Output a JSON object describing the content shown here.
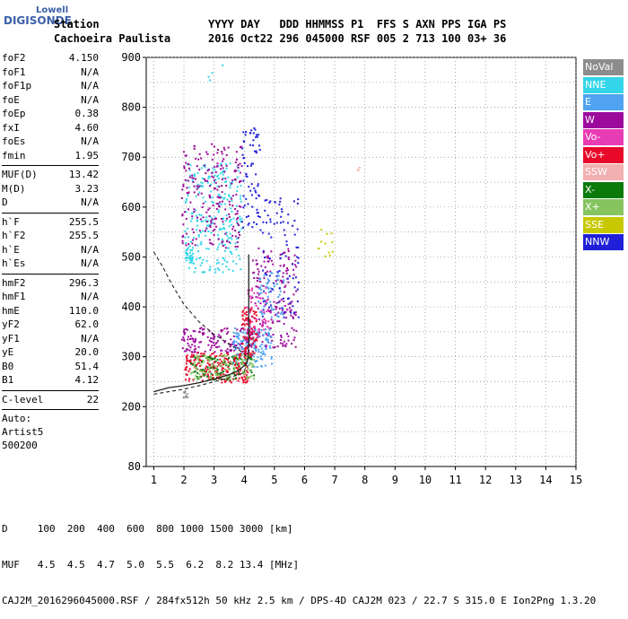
{
  "logo": {
    "line1": "Lowell",
    "line2": "DIGISONDE"
  },
  "header": {
    "station_label": "Station",
    "station_name": "Cachoeira Paulista",
    "columns": "YYYY DAY   DDD HHMMSS P1  FFS S AXN PPS IGA PS",
    "values": "2016 Oct22 296 045000 RSF 005 2 713 100 03+ 36"
  },
  "params": {
    "group1": [
      {
        "k": "foF2",
        "v": "4.150"
      },
      {
        "k": "foF1",
        "v": "N/A"
      },
      {
        "k": "foF1p",
        "v": "N/A"
      },
      {
        "k": "foE",
        "v": "N/A"
      },
      {
        "k": "foEp",
        "v": "0.38"
      },
      {
        "k": "fxI",
        "v": "4.60"
      },
      {
        "k": "foEs",
        "v": "N/A"
      },
      {
        "k": "fmin",
        "v": "1.95"
      }
    ],
    "group2": [
      {
        "k": "MUF(D)",
        "v": "13.42"
      },
      {
        "k": "M(D)",
        "v": "3.23"
      },
      {
        "k": "D",
        "v": "N/A"
      }
    ],
    "group3": [
      {
        "k": "h`F",
        "v": "255.5"
      },
      {
        "k": "h`F2",
        "v": "255.5"
      },
      {
        "k": "h`E",
        "v": "N/A"
      },
      {
        "k": "h`Es",
        "v": "N/A"
      }
    ],
    "group4": [
      {
        "k": "hmF2",
        "v": "296.3"
      },
      {
        "k": "hmF1",
        "v": "N/A"
      },
      {
        "k": "hmE",
        "v": "110.0"
      },
      {
        "k": "yF2",
        "v": "62.0"
      },
      {
        "k": "yF1",
        "v": "N/A"
      },
      {
        "k": "yE",
        "v": "20.0"
      },
      {
        "k": "B0",
        "v": "51.4"
      },
      {
        "k": "B1",
        "v": "4.12"
      }
    ],
    "group5": [
      {
        "k": "C-level",
        "v": "22"
      }
    ],
    "auto_lines": [
      "Auto:",
      "Artist5",
      "500200"
    ]
  },
  "legend": [
    {
      "label": "NoVal",
      "color": "#8c8c8c"
    },
    {
      "label": "NNE",
      "color": "#33d6e8"
    },
    {
      "label": "E",
      "color": "#4fa3f0"
    },
    {
      "label": "W",
      "color": "#9c0a9c"
    },
    {
      "label": "Vo-",
      "color": "#e83cb4"
    },
    {
      "label": "Vo+",
      "color": "#e8082a"
    },
    {
      "label": "SSW",
      "color": "#f2b0b0"
    },
    {
      "label": "X-",
      "color": "#0a7a0a"
    },
    {
      "label": "X+",
      "color": "#86c460"
    },
    {
      "label": "SSE",
      "color": "#c8c800"
    },
    {
      "label": "NNW",
      "color": "#2020d8"
    }
  ],
  "footer": {
    "line1": "D     100  200  400  600  800 1000 1500 3000 [km]",
    "line2": "MUF   4.5  4.5  4.7  5.0  5.5  6.2  8.2 13.4 [MHz]",
    "line3": "CAJ2M_2016296045000.RSF / 284fx512h 50 kHz 2.5 km / DPS-4D CAJ2M 023 / 22.7 S 315.0 E Ion2Png 1.3.20"
  },
  "chart_data": {
    "type": "scatter",
    "xlim": [
      0.75,
      15
    ],
    "ylim": [
      80,
      900
    ],
    "x_ticks": [
      1,
      2,
      3,
      4,
      5,
      6,
      7,
      8,
      9,
      10,
      11,
      12,
      13,
      14,
      15
    ],
    "y_ticks": [
      80,
      200,
      300,
      400,
      500,
      600,
      700,
      800,
      900
    ],
    "grid": true,
    "series": [
      {
        "legend": "NNE",
        "color": "#33d6e8",
        "clusters": [
          {
            "x": [
              2.0,
              3.9
            ],
            "y": [
              470,
              690
            ],
            "n": 260
          },
          {
            "x": [
              2.0,
              2.3
            ],
            "y": [
              490,
              520
            ],
            "n": 25
          },
          {
            "x": [
              2.6,
              3.3
            ],
            "y": [
              850,
              900
            ],
            "n": 4
          }
        ]
      },
      {
        "legend": "W",
        "color": "#9c0a9c",
        "clusters": [
          {
            "x": [
              1.9,
              3.9
            ],
            "y": [
              520,
              730
            ],
            "n": 220
          },
          {
            "x": [
              1.9,
              4.3
            ],
            "y": [
              310,
              360
            ],
            "n": 160
          },
          {
            "x": [
              4.2,
              5.7
            ],
            "y": [
              320,
              520
            ],
            "n": 180
          }
        ]
      },
      {
        "legend": "E",
        "color": "#4fa3f0",
        "clusters": [
          {
            "x": [
              3.6,
              4.9
            ],
            "y": [
              280,
              360
            ],
            "n": 150
          },
          {
            "x": [
              4.4,
              5.3
            ],
            "y": [
              380,
              470
            ],
            "n": 60
          }
        ]
      },
      {
        "legend": "NNW",
        "color": "#2020d8",
        "clusters": [
          {
            "x": [
              3.9,
              4.5
            ],
            "y": [
              560,
              760
            ],
            "n": 70
          },
          {
            "x": [
              4.5,
              5.8
            ],
            "y": [
              380,
              620
            ],
            "n": 90
          }
        ]
      },
      {
        "legend": "Vo+",
        "color": "#e8082a",
        "clusters": [
          {
            "x": [
              2.0,
              4.1
            ],
            "y": [
              250,
              310
            ],
            "n": 220
          },
          {
            "x": [
              3.9,
              4.4
            ],
            "y": [
              300,
              400
            ],
            "n": 90
          }
        ]
      },
      {
        "legend": "Vo-",
        "color": "#e83cb4",
        "clusters": [
          {
            "x": [
              4.0,
              4.8
            ],
            "y": [
              340,
              440
            ],
            "n": 60
          }
        ]
      },
      {
        "legend": "X-",
        "color": "#0a7a0a",
        "clusters": [
          {
            "x": [
              2.2,
              4.3
            ],
            "y": [
              255,
              305
            ],
            "n": 90
          }
        ]
      },
      {
        "legend": "X+",
        "color": "#86c460",
        "clusters": [
          {
            "x": [
              2.2,
              4.3
            ],
            "y": [
              255,
              305
            ],
            "n": 110
          }
        ]
      },
      {
        "legend": "SSE",
        "color": "#c8c800",
        "clusters": [
          {
            "x": [
              6.4,
              6.9
            ],
            "y": [
              500,
              560
            ],
            "n": 12
          }
        ]
      },
      {
        "legend": "SSW",
        "color": "#f2b0b0",
        "clusters": [
          {
            "x": [
              7.7,
              7.8
            ],
            "y": [
              675,
              682
            ],
            "n": 3
          }
        ]
      },
      {
        "legend": "NoVal",
        "color": "#8c8c8c",
        "clusters": [
          {
            "x": [
              1.9,
              2.1
            ],
            "y": [
              215,
              235
            ],
            "n": 8
          }
        ]
      }
    ],
    "trace_solid": {
      "x": [
        1.0,
        1.5,
        2.0,
        2.5,
        3.0,
        3.5,
        3.8,
        4.0,
        4.1,
        4.12,
        4.15,
        4.15
      ],
      "y": [
        230,
        238,
        242,
        248,
        255,
        264,
        272,
        282,
        290,
        296,
        330,
        505
      ]
    },
    "trace_dashed": {
      "x": [
        1.0,
        1.3,
        1.6,
        2.0,
        2.5,
        3.0,
        3.5,
        3.8,
        4.0,
        4.15
      ],
      "y": [
        510,
        480,
        445,
        405,
        370,
        345,
        325,
        315,
        305,
        296
      ]
    },
    "lower_dashed": {
      "x": [
        1.0,
        1.5,
        2.0,
        2.5,
        3.0,
        3.5,
        4.0,
        4.1
      ],
      "y": [
        225,
        230,
        235,
        242,
        250,
        258,
        268,
        296
      ]
    }
  }
}
